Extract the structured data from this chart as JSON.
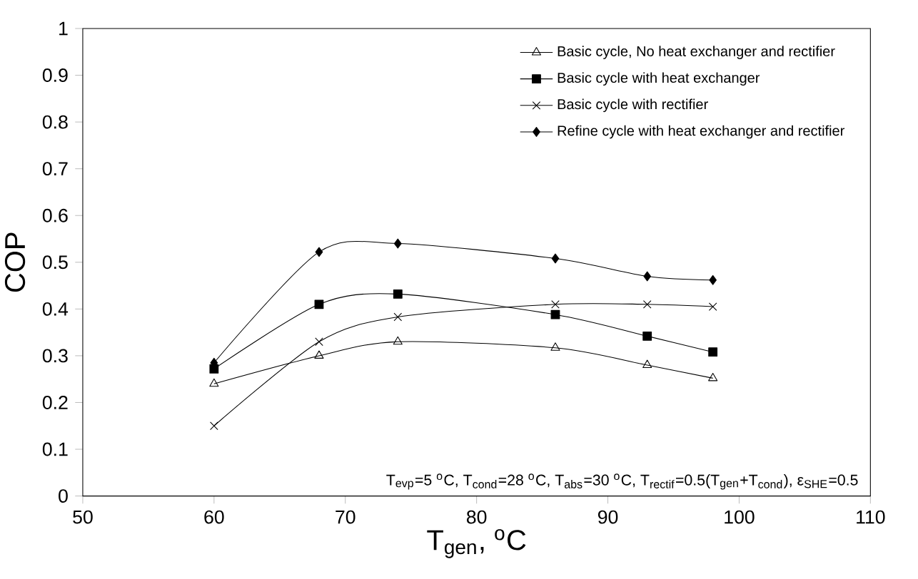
{
  "chart_data": {
    "type": "line",
    "xlabel": "T$_{gen}$, $^{o}$C",
    "ylabel": "COP",
    "x": [
      60,
      68,
      74,
      86,
      93,
      98
    ],
    "series": [
      {
        "name": "Basic cycle, No heat exchanger and rectifier",
        "color": "#000000",
        "marker": "triangle",
        "values": [
          0.24,
          0.3,
          0.33,
          0.317,
          0.28,
          0.252
        ]
      },
      {
        "name": "Basic cycle with heat exchanger",
        "color": "#000000",
        "marker": "square",
        "values": [
          0.272,
          0.41,
          0.432,
          0.388,
          0.342,
          0.308
        ]
      },
      {
        "name": "Basic cycle with rectifier",
        "color": "#000000",
        "marker": "cross",
        "values": [
          0.15,
          0.33,
          0.383,
          0.41,
          0.41,
          0.405
        ]
      },
      {
        "name": "Refine cycle with heat exchanger and rectifier",
        "color": "#000000",
        "marker": "diamond",
        "values": [
          0.285,
          0.522,
          0.54,
          0.508,
          0.47,
          0.462
        ]
      }
    ],
    "xlim": [
      50,
      110
    ],
    "xticks": [
      50,
      60,
      70,
      80,
      90,
      100,
      110
    ],
    "ylim": [
      0,
      1
    ],
    "yticks": [
      0,
      0.1,
      0.2,
      0.3,
      0.4,
      0.5,
      0.6,
      0.7,
      0.8,
      0.9,
      1
    ],
    "grid": false,
    "legend": "top right",
    "line_style": "solid",
    "annotations": [
      "T$_{evp}$=5 $^{o}$C, T$_{cond}$=28 $^{o}$C, T$_{abs}$=30 $^{o}$C, T$_{rectif}$=0.5(T$_{gen}$+T$_{cond}$), ε$_{SHE}$=0.5"
    ]
  }
}
